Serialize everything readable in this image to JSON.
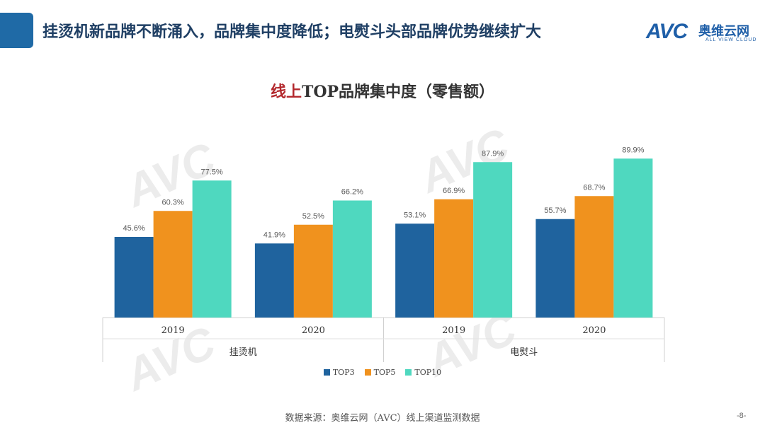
{
  "header": {
    "title": "挂烫机新品牌不断涌入，品牌集中度降低；电熨斗头部品牌优势继续扩大",
    "accent_color": "#1f6aa6",
    "logo": {
      "mark": "AVC",
      "cn": "奥维云网",
      "en": "ALL VIEW CLOUD"
    }
  },
  "watermark": {
    "mark": "AVC",
    "cn": "奥维云网",
    "en": "ALL VIEW CLOUD"
  },
  "chart_data": {
    "type": "bar",
    "title_prefix": "线上",
    "title_rest": "TOP品牌集中度（零售额）",
    "groups": [
      {
        "name": "挂烫机",
        "categories": [
          "2019",
          "2020"
        ]
      },
      {
        "name": "电熨斗",
        "categories": [
          "2019",
          "2020"
        ]
      }
    ],
    "series": [
      {
        "name": "TOP3",
        "color": "#1f639e",
        "values": [
          45.6,
          41.9,
          53.1,
          55.7
        ]
      },
      {
        "name": "TOP5",
        "color": "#f0921e",
        "values": [
          60.3,
          52.5,
          66.9,
          68.7
        ]
      },
      {
        "name": "TOP10",
        "color": "#4fd8bf",
        "values": [
          77.5,
          66.2,
          87.9,
          89.9
        ]
      }
    ],
    "value_suffix": "%",
    "ylim": [
      0,
      100
    ],
    "grid": false,
    "legend_position": "bottom"
  },
  "footer": {
    "source": "数据来源：奥维云网（AVC）线上渠道监测数据",
    "page": "-8-"
  }
}
